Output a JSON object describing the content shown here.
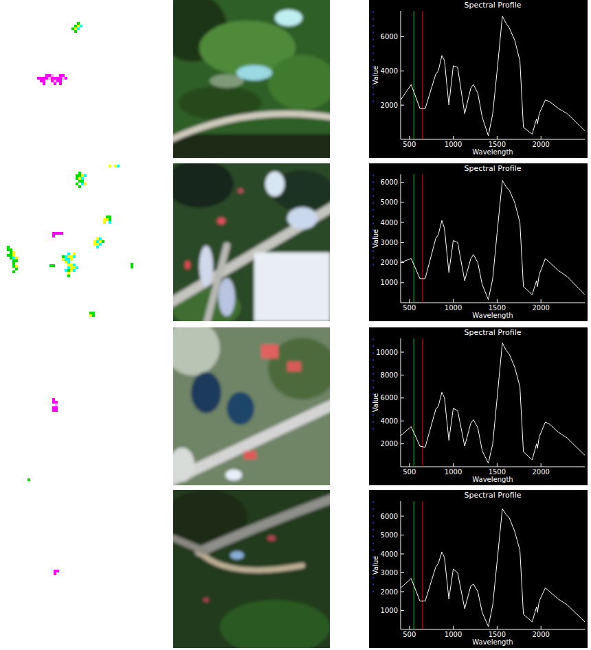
{
  "chart_data": [
    {
      "type": "line",
      "title": "Spectral Profile",
      "x_label": "Wavelength",
      "y_label": "Value",
      "color": "#ffffff",
      "x": [
        400,
        520,
        620,
        680,
        800,
        830,
        870,
        900,
        950,
        1000,
        1050,
        1130,
        1200,
        1230,
        1280,
        1330,
        1400,
        1450,
        1500,
        1560,
        1600,
        1640,
        1700,
        1760,
        1800,
        1900,
        1950,
        1960,
        1980,
        2050,
        2100,
        2200,
        2300,
        2500
      ],
      "values": [
        2300,
        3200,
        1800,
        1800,
        3800,
        4000,
        4900,
        4600,
        2000,
        4300,
        4200,
        1500,
        3000,
        3200,
        2700,
        1300,
        200,
        1500,
        4000,
        7200,
        6800,
        6500,
        5800,
        4600,
        700,
        300,
        1200,
        900,
        1500,
        2300,
        2200,
        1800,
        1500,
        500
      ],
      "xlim": [
        400,
        2500
      ],
      "xticks": [
        500,
        1000,
        1500,
        2000
      ],
      "ylim": [
        0,
        7500
      ],
      "yticks": [
        2000,
        4000,
        6000
      ],
      "vlines": [
        {
          "x": 550,
          "color": "#00c800"
        },
        {
          "x": 650,
          "color": "#ff0000"
        }
      ]
    },
    {
      "type": "line",
      "title": "Spectral Profile",
      "x_label": "Wavelength",
      "y_label": "Value",
      "color": "#ffffff",
      "x": [
        400,
        520,
        620,
        680,
        800,
        830,
        870,
        900,
        950,
        1000,
        1050,
        1130,
        1200,
        1230,
        1280,
        1330,
        1400,
        1450,
        1500,
        1560,
        1600,
        1640,
        1700,
        1760,
        1800,
        1900,
        1950,
        1960,
        1980,
        2050,
        2100,
        2200,
        2300,
        2500
      ],
      "values": [
        2000,
        2200,
        1200,
        1200,
        3200,
        3400,
        4100,
        3700,
        1500,
        3100,
        3000,
        1100,
        2200,
        2400,
        2000,
        900,
        150,
        1200,
        3500,
        6100,
        5800,
        5600,
        5000,
        4000,
        800,
        400,
        1100,
        800,
        1400,
        2200,
        2000,
        1600,
        1300,
        400
      ],
      "xlim": [
        400,
        2500
      ],
      "xticks": [
        500,
        1000,
        1500,
        2000
      ],
      "ylim": [
        0,
        6400
      ],
      "yticks": [
        1000,
        2000,
        3000,
        4000,
        5000,
        6000
      ],
      "vlines": [
        {
          "x": 550,
          "color": "#00c800"
        },
        {
          "x": 650,
          "color": "#ff0000"
        }
      ]
    },
    {
      "type": "line",
      "title": "Spectral Profile",
      "x_label": "Wavelength",
      "y_label": "Value",
      "color": "#ffffff",
      "x": [
        400,
        520,
        620,
        680,
        800,
        830,
        870,
        900,
        950,
        1000,
        1050,
        1130,
        1200,
        1230,
        1280,
        1330,
        1400,
        1450,
        1500,
        1560,
        1600,
        1640,
        1700,
        1760,
        1800,
        1900,
        1950,
        1960,
        1980,
        2050,
        2100,
        2200,
        2300,
        2500
      ],
      "values": [
        2700,
        3500,
        1800,
        1700,
        5000,
        5300,
        6500,
        6000,
        2300,
        5100,
        4900,
        1800,
        3800,
        4100,
        3400,
        1400,
        300,
        2000,
        6000,
        10800,
        10200,
        9800,
        8700,
        7000,
        1300,
        600,
        2000,
        1600,
        2600,
        3900,
        3700,
        3000,
        2500,
        1000
      ],
      "xlim": [
        400,
        2500
      ],
      "xticks": [
        500,
        1000,
        1500,
        2000
      ],
      "ylim": [
        0,
        11200
      ],
      "yticks": [
        2000,
        4000,
        6000,
        8000,
        10000
      ],
      "vlines": [
        {
          "x": 550,
          "color": "#00c800"
        },
        {
          "x": 650,
          "color": "#ff0000"
        }
      ]
    },
    {
      "type": "line",
      "title": "Spectral Profile",
      "x_label": "Wavelength",
      "y_label": "Value",
      "color": "#ffffff",
      "x": [
        400,
        520,
        620,
        680,
        800,
        830,
        870,
        900,
        950,
        1000,
        1050,
        1130,
        1200,
        1230,
        1280,
        1330,
        1400,
        1450,
        1500,
        1560,
        1600,
        1640,
        1700,
        1760,
        1800,
        1900,
        1950,
        1960,
        1980,
        2050,
        2100,
        2200,
        2300,
        2500
      ],
      "values": [
        2200,
        2700,
        1500,
        1500,
        3300,
        3500,
        4100,
        3800,
        1600,
        3200,
        3000,
        1100,
        2300,
        2400,
        2000,
        900,
        150,
        1300,
        3600,
        6400,
        6100,
        5900,
        5200,
        4200,
        800,
        400,
        1200,
        900,
        1500,
        2200,
        2000,
        1600,
        1300,
        400
      ],
      "xlim": [
        400,
        2500
      ],
      "xticks": [
        500,
        1000,
        1500,
        2000
      ],
      "ylim": [
        0,
        6800
      ],
      "yticks": [
        1000,
        2000,
        3000,
        4000,
        5000,
        6000
      ],
      "vlines": [
        {
          "x": 550,
          "color": "#00c800"
        },
        {
          "x": 650,
          "color": "#ff0000"
        }
      ]
    }
  ]
}
